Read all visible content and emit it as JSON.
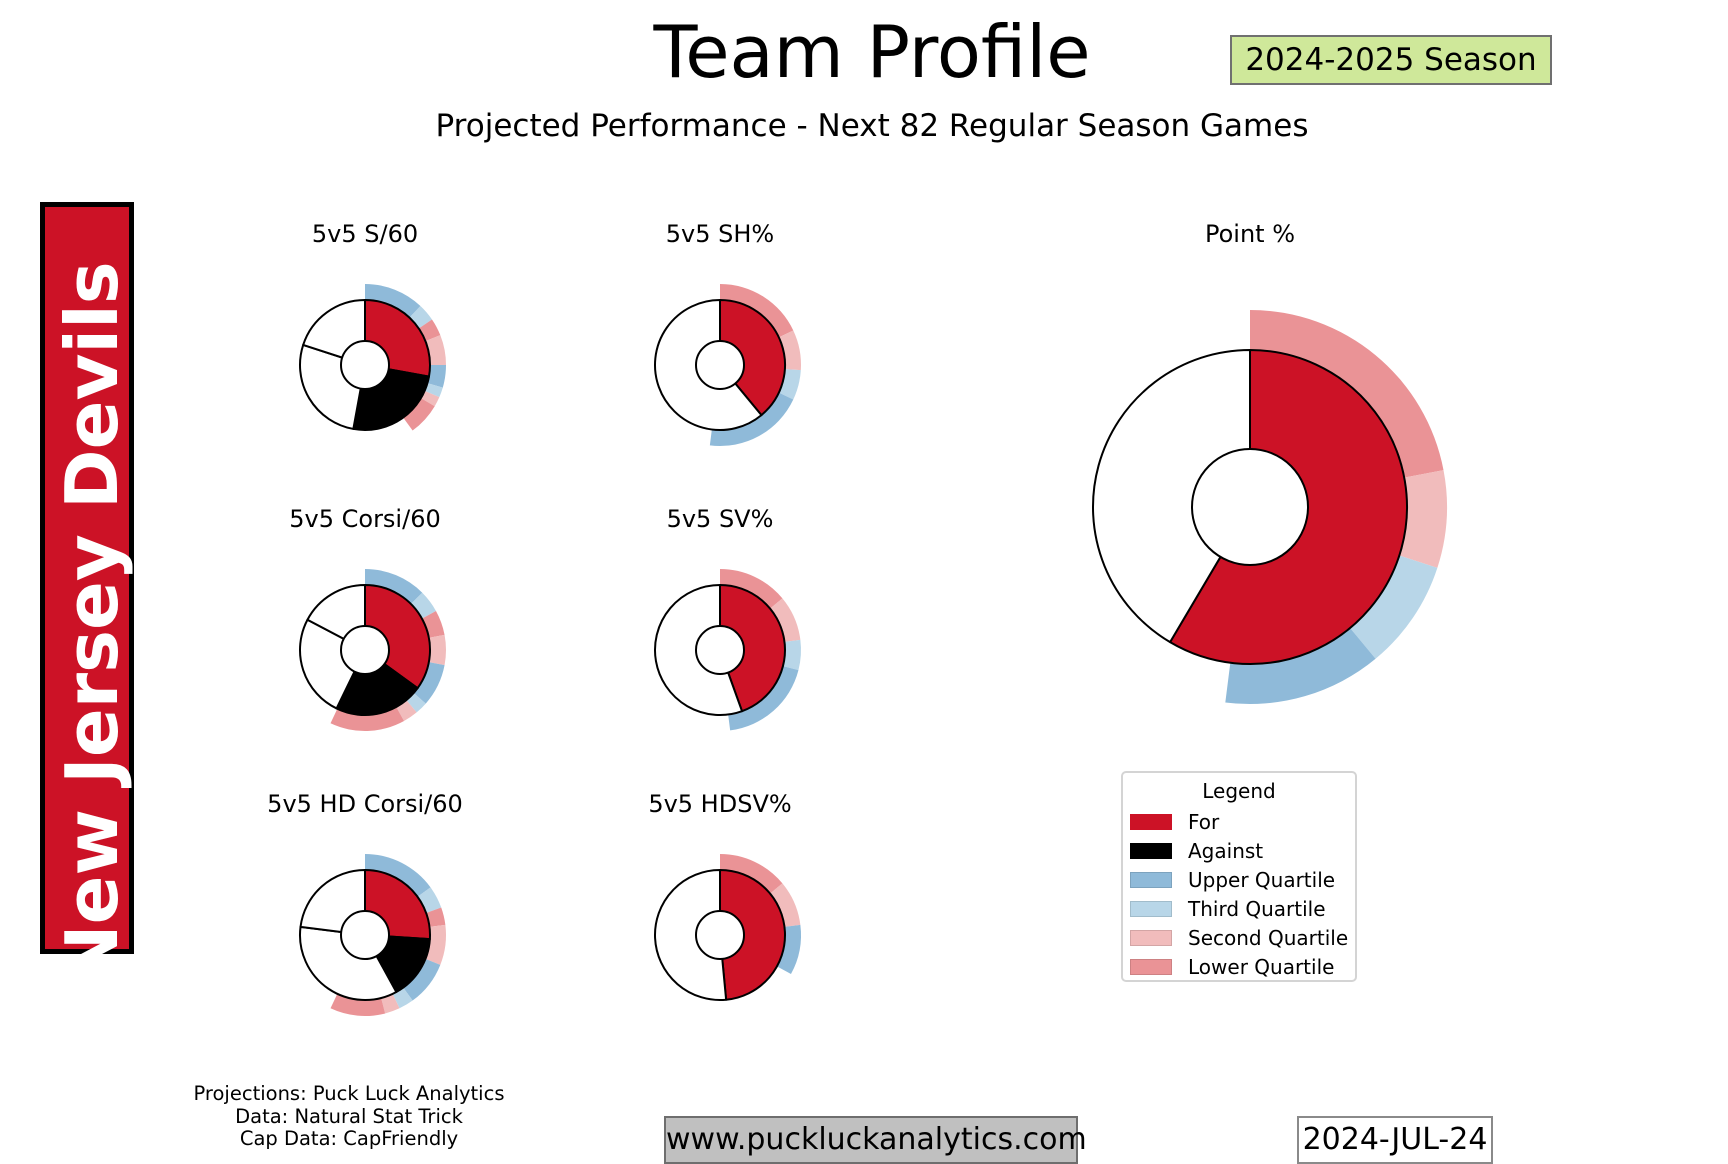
{
  "header": {
    "title": "Team Profile",
    "subtitle": "Projected Performance - Next 82 Regular Season Games",
    "season": "2024-2025 Season"
  },
  "team": {
    "name": "New Jersey Devils",
    "banner_color": "#cc1226"
  },
  "colors": {
    "for": "#cc1226",
    "against": "#000000",
    "remainder": "#ffffff",
    "upper_quartile": "#8fbad9",
    "third_quartile": "#b8d6e8",
    "second_quartile": "#f1bcbc",
    "lower_quartile": "#ea9396"
  },
  "chart_data": [
    {
      "type": "pie",
      "title": "5v5 S/60",
      "inner": [
        {
          "label": "For",
          "value": 0.2787
        },
        {
          "label": "Against",
          "value": 0.25
        },
        {
          "label": "",
          "value": 0.2713
        },
        {
          "label": "",
          "value": 0.2
        }
      ],
      "outer": [
        {
          "label": "Upper Quartile",
          "value": 0.12
        },
        {
          "label": "Third Quartile",
          "value": 0.035
        },
        {
          "label": "Lower Quartile",
          "value": 0.035
        },
        {
          "label": "Second Quartile",
          "value": 0.06
        },
        {
          "label": "Upper Quartile",
          "value": 0.045
        },
        {
          "label": "Third Quartile",
          "value": 0.02
        },
        {
          "label": "Second Quartile",
          "value": 0.02
        },
        {
          "label": "Lower Quartile",
          "value": 0.065
        }
      ]
    },
    {
      "type": "pie",
      "title": "5v5 SH%",
      "inner": [
        {
          "label": "For",
          "value": 0.39
        },
        {
          "label": "",
          "value": 0.61
        }
      ],
      "outer": [
        {
          "label": "Lower Quartile",
          "value": 0.18
        },
        {
          "label": "Second Quartile",
          "value": 0.08
        },
        {
          "label": "Third Quartile",
          "value": 0.06
        },
        {
          "label": "Upper Quartile",
          "value": 0.2
        }
      ]
    },
    {
      "type": "pie",
      "title": "5v5 Corsi/60",
      "inner": [
        {
          "label": "For",
          "value": 0.35
        },
        {
          "label": "Against",
          "value": 0.222
        },
        {
          "label": "",
          "value": 0.255
        },
        {
          "label": "",
          "value": 0.173
        }
      ],
      "outer": [
        {
          "label": "Upper Quartile",
          "value": 0.125
        },
        {
          "label": "Third Quartile",
          "value": 0.045
        },
        {
          "label": "Lower Quartile",
          "value": 0.05
        },
        {
          "label": "Second Quartile",
          "value": 0.06
        },
        {
          "label": "Upper Quartile",
          "value": 0.085
        },
        {
          "label": "Third Quartile",
          "value": 0.025
        },
        {
          "label": "Second Quartile",
          "value": 0.03
        },
        {
          "label": "Lower Quartile",
          "value": 0.15
        }
      ]
    },
    {
      "type": "pie",
      "title": "5v5 SV%",
      "inner": [
        {
          "label": "For",
          "value": 0.445
        },
        {
          "label": "",
          "value": 0.555
        }
      ],
      "outer": [
        {
          "label": "Lower Quartile",
          "value": 0.14
        },
        {
          "label": "Second Quartile",
          "value": 0.09
        },
        {
          "label": "Third Quartile",
          "value": 0.06
        },
        {
          "label": "Upper Quartile",
          "value": 0.19
        }
      ]
    },
    {
      "type": "pie",
      "title": "5v5 HD Corsi/60",
      "inner": [
        {
          "label": "For",
          "value": 0.26
        },
        {
          "label": "Against",
          "value": 0.16
        },
        {
          "label": "",
          "value": 0.35
        },
        {
          "label": "",
          "value": 0.23
        }
      ],
      "outer": [
        {
          "label": "Upper Quartile",
          "value": 0.15
        },
        {
          "label": "Third Quartile",
          "value": 0.045
        },
        {
          "label": "Lower Quartile",
          "value": 0.035
        },
        {
          "label": "Second Quartile",
          "value": 0.08
        },
        {
          "label": "Upper Quartile",
          "value": 0.09
        },
        {
          "label": "Third Quartile",
          "value": 0.03
        },
        {
          "label": "Second Quartile",
          "value": 0.03
        },
        {
          "label": "Lower Quartile",
          "value": 0.11
        }
      ]
    },
    {
      "type": "pie",
      "title": "5v5 HDSV%",
      "inner": [
        {
          "label": "For",
          "value": 0.485
        },
        {
          "label": "",
          "value": 0.515
        }
      ],
      "outer": [
        {
          "label": "Lower Quartile",
          "value": 0.14
        },
        {
          "label": "Second Quartile",
          "value": 0.09
        },
        {
          "label": "Upper Quartile",
          "value": 0.1
        }
      ]
    },
    {
      "type": "pie",
      "title": "Point %",
      "inner": [
        {
          "label": "For",
          "value": 0.585
        },
        {
          "label": "",
          "value": 0.415
        }
      ],
      "outer": [
        {
          "label": "Lower Quartile",
          "value": 0.22
        },
        {
          "label": "Second Quartile",
          "value": 0.08
        },
        {
          "label": "Third Quartile",
          "value": 0.09
        },
        {
          "label": "Upper Quartile",
          "value": 0.13
        }
      ]
    }
  ],
  "legend": {
    "title": "Legend",
    "placement": "lower-right",
    "items": [
      {
        "label": "For",
        "color": "#cc1226"
      },
      {
        "label": "Against",
        "color": "#000000"
      },
      {
        "label": "Upper Quartile",
        "color": "#8fbad9"
      },
      {
        "label": "Third Quartile",
        "color": "#b8d6e8"
      },
      {
        "label": "Second Quartile",
        "color": "#f1bcbc"
      },
      {
        "label": "Lower Quartile",
        "color": "#ea9396"
      }
    ]
  },
  "footer": {
    "credits": [
      "Projections: Puck Luck Analytics",
      "Data: Natural Stat Trick",
      "Cap Data: CapFriendly"
    ],
    "website": "www.puckluckanalytics.com",
    "date": "2024-JUL-24"
  }
}
